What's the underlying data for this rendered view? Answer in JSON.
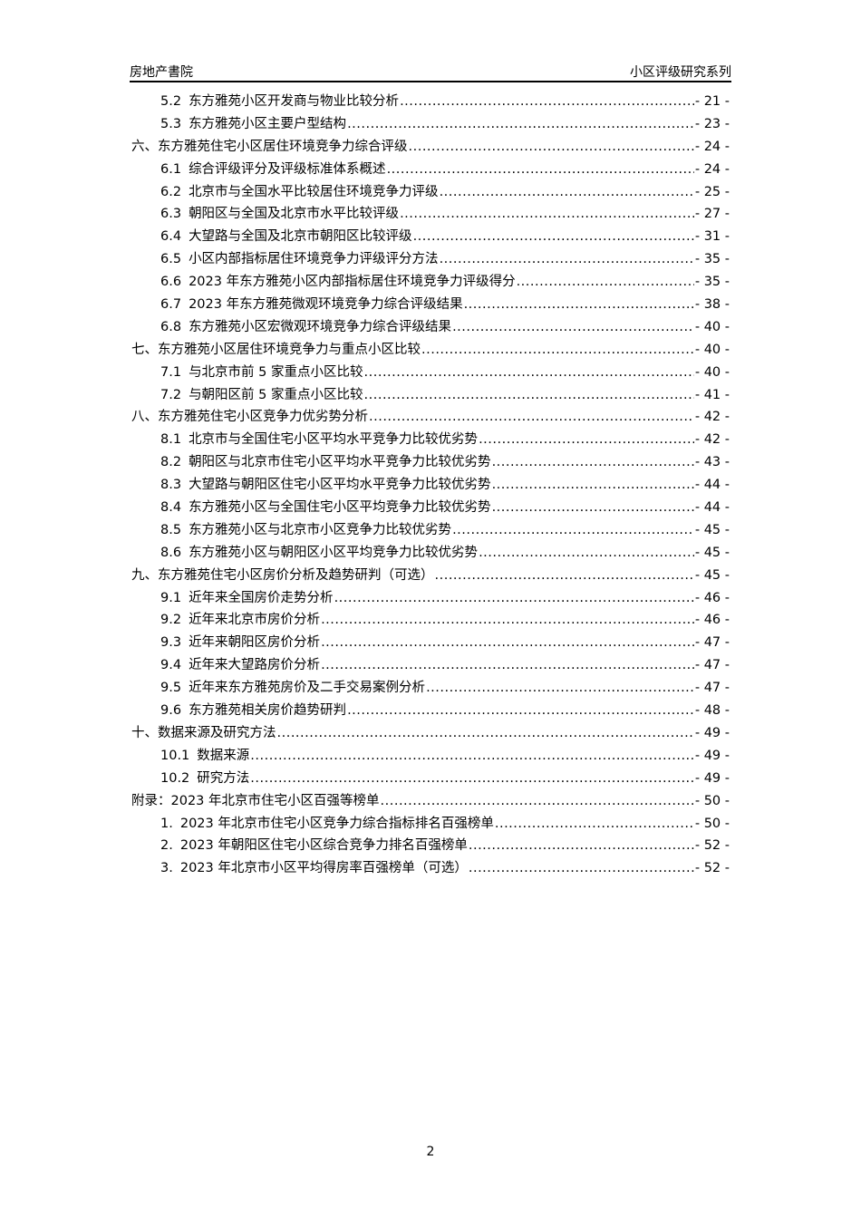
{
  "header": {
    "left": "房地产書院",
    "right": "小区评级研究系列"
  },
  "toc": [
    {
      "level": 2,
      "num": "5.2",
      "title": "东方雅苑小区开发商与物业比较分析",
      "page": "- 21 -"
    },
    {
      "level": 2,
      "num": "5.3",
      "title": "东方雅苑小区主要户型结构",
      "page": "- 23 -"
    },
    {
      "level": 1,
      "num": "",
      "title": "六、东方雅苑住宅小区居住环境竞争力综合评级",
      "page": "- 24 -"
    },
    {
      "level": 2,
      "num": "6.1",
      "title": "综合评级评分及评级标准体系概述",
      "page": "- 24 -"
    },
    {
      "level": 2,
      "num": "6.2",
      "title": "北京市与全国水平比较居住环境竞争力评级",
      "page": "- 25 -"
    },
    {
      "level": 2,
      "num": "6.3",
      "title": "朝阳区与全国及北京市水平比较评级",
      "page": "- 27 -"
    },
    {
      "level": 2,
      "num": "6.4",
      "title": "大望路与全国及北京市朝阳区比较评级",
      "page": "- 31 -"
    },
    {
      "level": 2,
      "num": "6.5",
      "title": "小区内部指标居住环境竞争力评级评分方法",
      "page": "- 35 -"
    },
    {
      "level": 2,
      "num": "6.6",
      "title": "2023 年东方雅苑小区内部指标居住环境竞争力评级得分",
      "page": "- 35 -"
    },
    {
      "level": 2,
      "num": "6.7",
      "title": "2023 年东方雅苑微观环境竞争力综合评级结果",
      "page": "- 38 -"
    },
    {
      "level": 2,
      "num": "6.8",
      "title": "东方雅苑小区宏微观环境竞争力综合评级结果",
      "page": "- 40 -"
    },
    {
      "level": 1,
      "num": "",
      "title": "七、东方雅苑小区居住环境竞争力与重点小区比较",
      "page": "- 40 -"
    },
    {
      "level": 2,
      "num": "7.1",
      "title": "与北京市前 5 家重点小区比较",
      "page": "- 40 -"
    },
    {
      "level": 2,
      "num": "7.2",
      "title": "与朝阳区前 5 家重点小区比较",
      "page": "- 41 -"
    },
    {
      "level": 1,
      "num": "",
      "title": "八、东方雅苑住宅小区竞争力优劣势分析",
      "page": "- 42 -"
    },
    {
      "level": 2,
      "num": "8.1",
      "title": "北京市与全国住宅小区平均水平竞争力比较优劣势",
      "page": "- 42 -"
    },
    {
      "level": 2,
      "num": "8.2",
      "title": "朝阳区与北京市住宅小区平均水平竞争力比较优劣势",
      "page": "- 43 -"
    },
    {
      "level": 2,
      "num": "8.3",
      "title": "大望路与朝阳区住宅小区平均水平竞争力比较优劣势",
      "page": "- 44 -"
    },
    {
      "level": 2,
      "num": "8.4",
      "title": "东方雅苑小区与全国住宅小区平均竞争力比较优劣势",
      "page": "- 44 -"
    },
    {
      "level": 2,
      "num": "8.5",
      "title": "东方雅苑小区与北京市小区竞争力比较优劣势",
      "page": "- 45 -"
    },
    {
      "level": 2,
      "num": "8.6",
      "title": "东方雅苑小区与朝阳区小区平均竞争力比较优劣势",
      "page": "- 45 -"
    },
    {
      "level": 1,
      "num": "",
      "title": "九、东方雅苑住宅小区房价分析及趋势研判（可选）",
      "page": "- 45 -"
    },
    {
      "level": 2,
      "num": "9.1",
      "title": "近年来全国房价走势分析",
      "page": "- 46 -"
    },
    {
      "level": 2,
      "num": "9.2",
      "title": "近年来北京市房价分析",
      "page": "- 46 -"
    },
    {
      "level": 2,
      "num": "9.3",
      "title": "近年来朝阳区房价分析",
      "page": "- 47 -"
    },
    {
      "level": 2,
      "num": "9.4",
      "title": "近年来大望路房价分析",
      "page": "- 47 -"
    },
    {
      "level": 2,
      "num": "9.5",
      "title": "近年来东方雅苑房价及二手交易案例分析",
      "page": "- 47 -"
    },
    {
      "level": 2,
      "num": "9.6",
      "title": "东方雅苑相关房价趋势研判",
      "page": "- 48 -"
    },
    {
      "level": 1,
      "num": "",
      "title": "十、数据来源及研究方法",
      "page": "- 49 -"
    },
    {
      "level": 2,
      "num": "10.1",
      "title": "数据来源",
      "page": "- 49 -"
    },
    {
      "level": 2,
      "num": "10.2",
      "title": "研究方法",
      "page": "- 49 -"
    },
    {
      "level": 1,
      "num": "",
      "title": "附录：2023 年北京市住宅小区百强等榜单",
      "page": "- 50 -"
    },
    {
      "level": 2,
      "num": "1.",
      "title": "2023 年北京市住宅小区竞争力综合指标排名百强榜单",
      "page": "- 50 -"
    },
    {
      "level": 2,
      "num": "2.",
      "title": "2023 年朝阳区住宅小区综合竞争力排名百强榜单",
      "page": "- 52 -"
    },
    {
      "level": 2,
      "num": "3.",
      "title": "2023 年北京市小区平均得房率百强榜单（可选）",
      "page": "- 52 -"
    }
  ],
  "footer": {
    "page_number": "2"
  }
}
